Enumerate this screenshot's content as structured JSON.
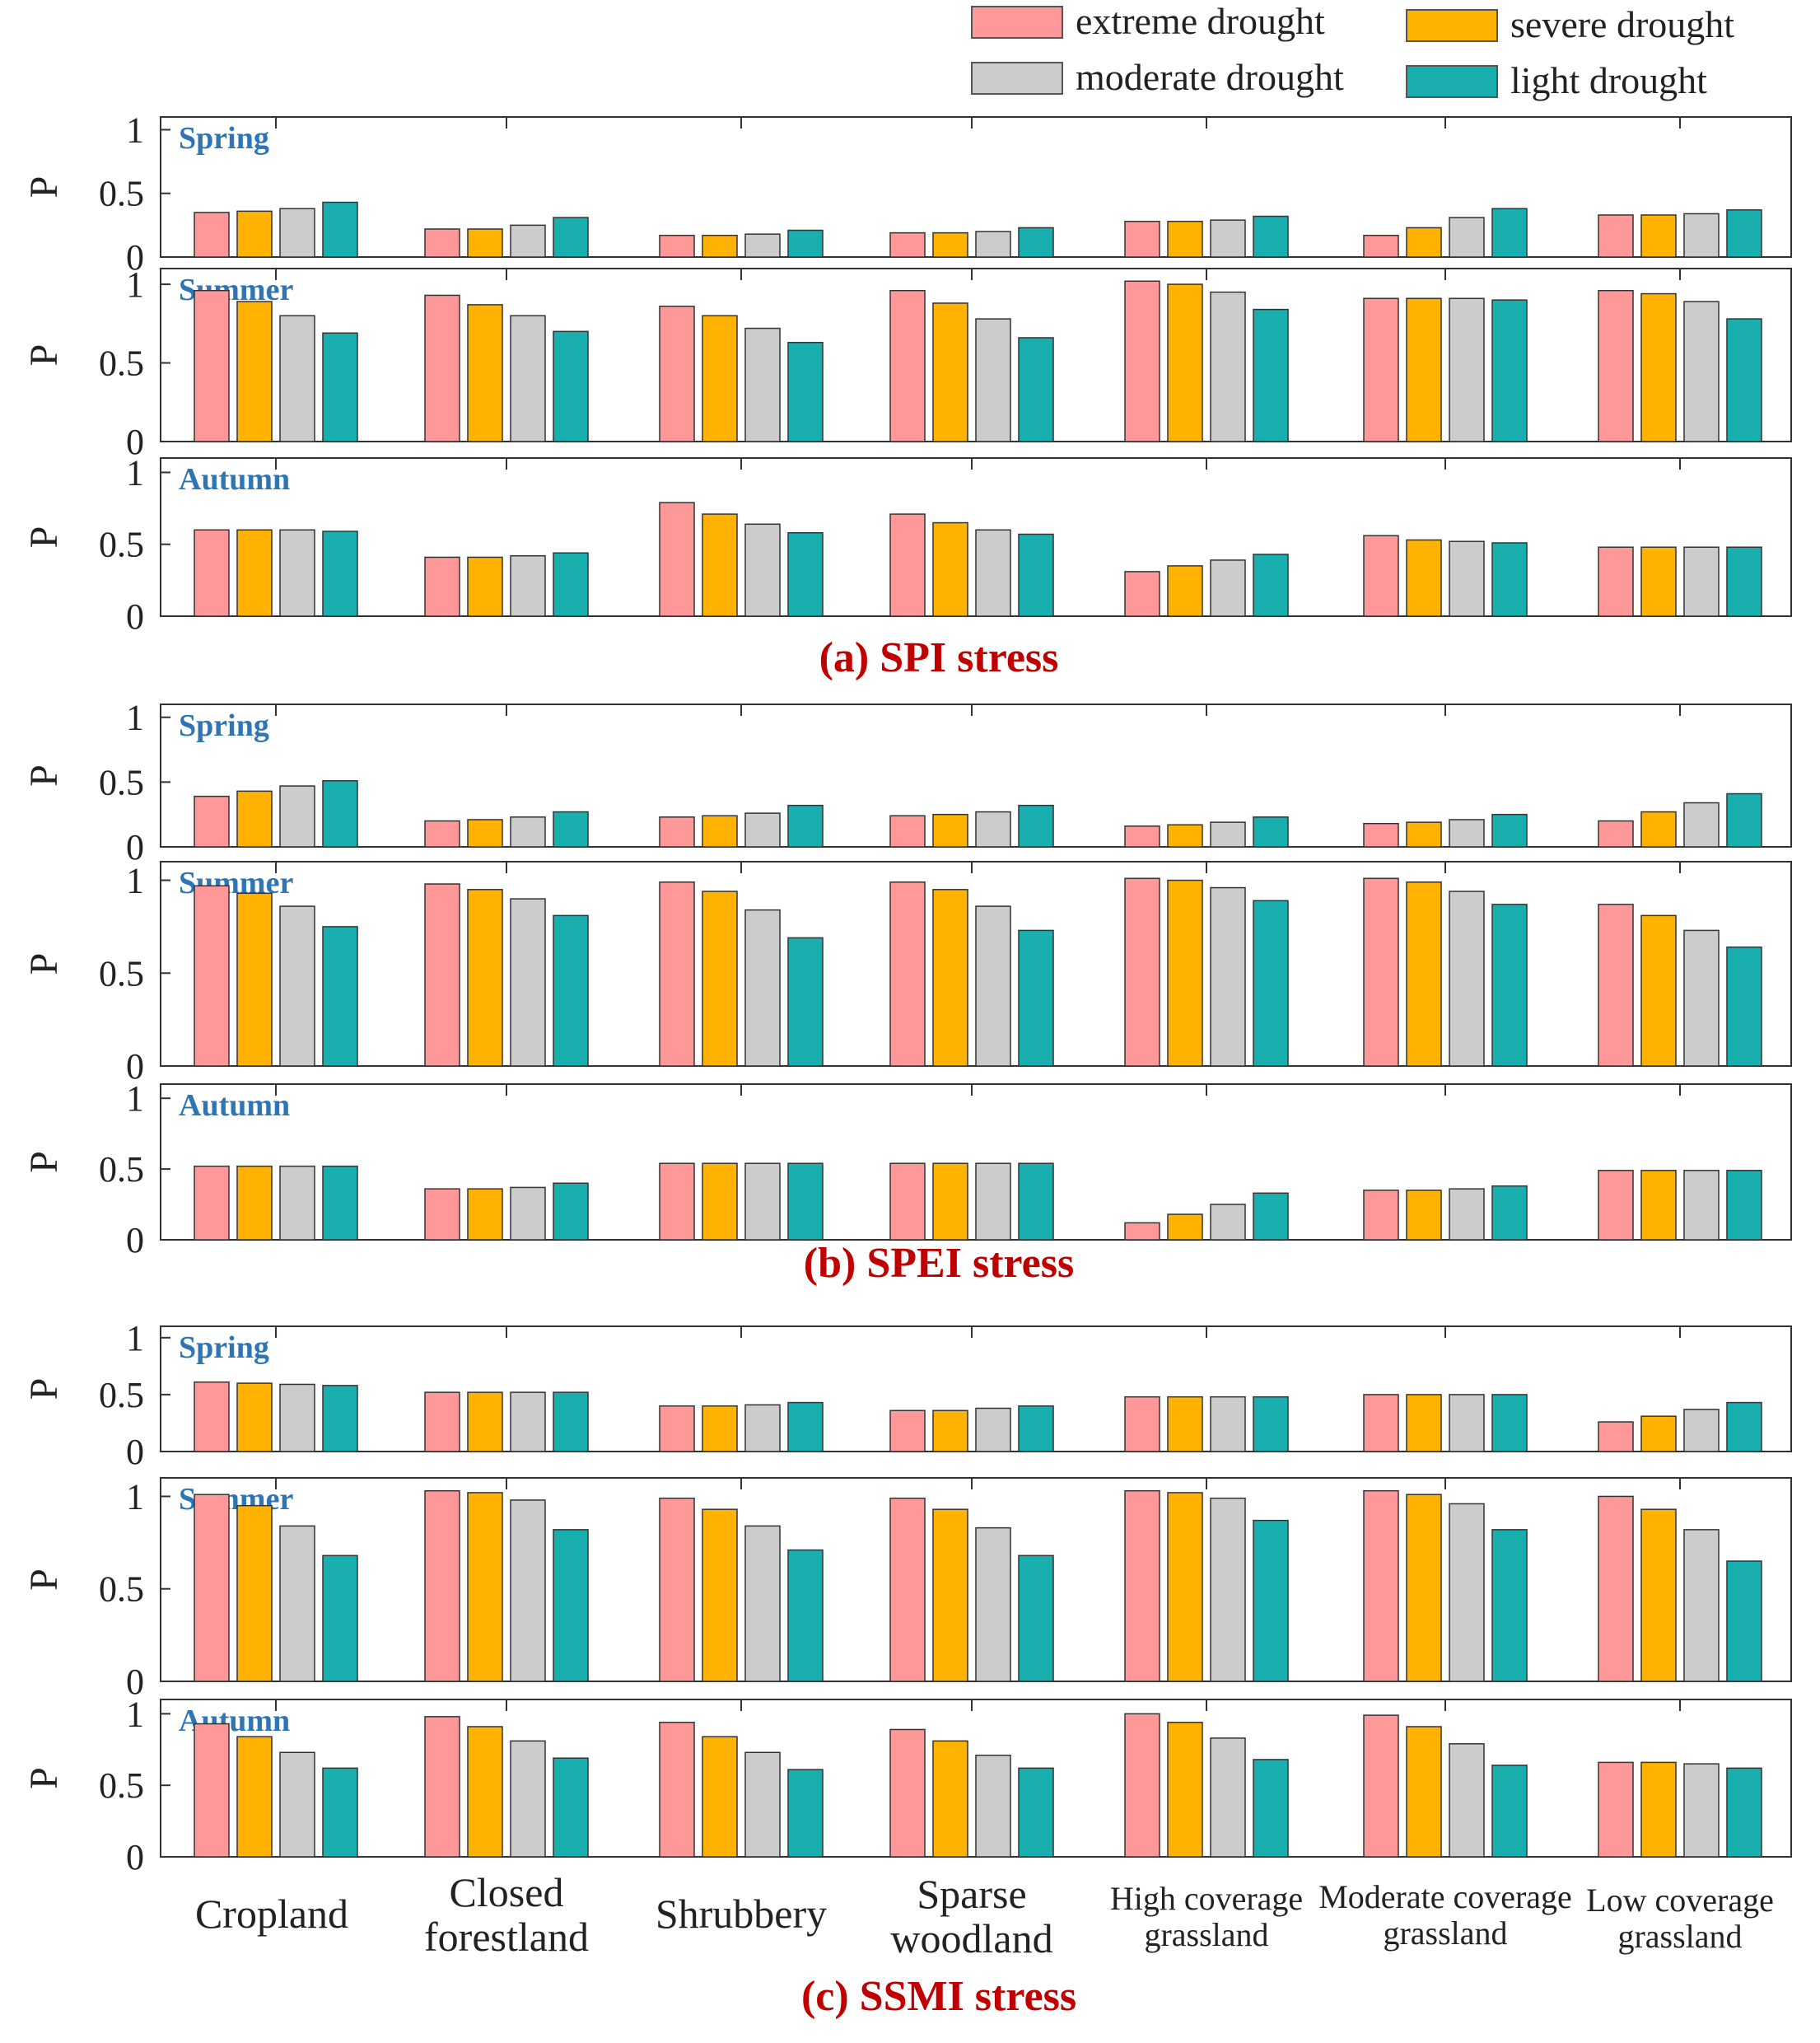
{
  "legend": {
    "items": [
      {
        "label": "extreme drought",
        "color": "#FF9999"
      },
      {
        "label": "severe drought",
        "color": "#FFB300"
      },
      {
        "label": "moderate drought",
        "color": "#CCCCCC"
      },
      {
        "label": "light drought",
        "color": "#1AAFAF"
      }
    ]
  },
  "colors": {
    "extreme": "#FF9999",
    "severe": "#FFB300",
    "moderate": "#CCCCCC",
    "light": "#1AAFAF",
    "caption": "#C00000",
    "season_label": "#2E75B6",
    "axis": "#333333"
  },
  "categories_display": [
    [
      "Cropland"
    ],
    [
      "Closed",
      "forestland"
    ],
    [
      "Shrubbery"
    ],
    [
      "Sparse",
      "woodland"
    ],
    [
      "High coverage",
      "grassland"
    ],
    [
      "Moderate coverage",
      "grassland"
    ],
    [
      "Low coverage",
      "grassland"
    ]
  ],
  "chart_data": [
    {
      "type": "bar",
      "caption": "(a) SPI stress",
      "ylabel": "P",
      "ylim": [
        0,
        1.1
      ],
      "yticks": [
        "0",
        "0.5",
        "1"
      ],
      "categories": [
        "Cropland",
        "Closed forestland",
        "Shrubbery",
        "Sparse woodland",
        "High coverage grassland",
        "Moderate coverage grassland",
        "Low coverage grassland"
      ],
      "panels": [
        {
          "season": "Spring",
          "series": [
            {
              "name": "extreme drought",
              "values": [
                0.35,
                0.22,
                0.17,
                0.19,
                0.28,
                0.17,
                0.33
              ]
            },
            {
              "name": "severe drought",
              "values": [
                0.36,
                0.22,
                0.17,
                0.19,
                0.28,
                0.23,
                0.33
              ]
            },
            {
              "name": "moderate drought",
              "values": [
                0.38,
                0.25,
                0.18,
                0.2,
                0.29,
                0.31,
                0.34
              ]
            },
            {
              "name": "light drought",
              "values": [
                0.43,
                0.31,
                0.21,
                0.23,
                0.32,
                0.38,
                0.37
              ]
            }
          ]
        },
        {
          "season": "Summer",
          "series": [
            {
              "name": "extreme drought",
              "values": [
                0.96,
                0.93,
                0.86,
                0.96,
                1.02,
                0.91,
                0.96
              ]
            },
            {
              "name": "severe drought",
              "values": [
                0.89,
                0.87,
                0.8,
                0.88,
                1.0,
                0.91,
                0.94
              ]
            },
            {
              "name": "moderate drought",
              "values": [
                0.8,
                0.8,
                0.72,
                0.78,
                0.95,
                0.91,
                0.89
              ]
            },
            {
              "name": "light drought",
              "values": [
                0.69,
                0.7,
                0.63,
                0.66,
                0.84,
                0.9,
                0.78
              ]
            }
          ]
        },
        {
          "season": "Autumn",
          "series": [
            {
              "name": "extreme drought",
              "values": [
                0.6,
                0.41,
                0.79,
                0.71,
                0.31,
                0.56,
                0.48
              ]
            },
            {
              "name": "severe drought",
              "values": [
                0.6,
                0.41,
                0.71,
                0.65,
                0.35,
                0.53,
                0.48
              ]
            },
            {
              "name": "moderate drought",
              "values": [
                0.6,
                0.42,
                0.64,
                0.6,
                0.39,
                0.52,
                0.48
              ]
            },
            {
              "name": "light drought",
              "values": [
                0.59,
                0.44,
                0.58,
                0.57,
                0.43,
                0.51,
                0.48
              ]
            }
          ]
        }
      ]
    },
    {
      "type": "bar",
      "caption": "(b) SPEI stress",
      "ylabel": "P",
      "ylim": [
        0,
        1.1
      ],
      "yticks": [
        "0",
        "0.5",
        "1"
      ],
      "categories": [
        "Cropland",
        "Closed forestland",
        "Shrubbery",
        "Sparse woodland",
        "High coverage grassland",
        "Moderate coverage grassland",
        "Low coverage grassland"
      ],
      "panels": [
        {
          "season": "Spring",
          "series": [
            {
              "name": "extreme drought",
              "values": [
                0.39,
                0.2,
                0.23,
                0.24,
                0.16,
                0.18,
                0.2
              ]
            },
            {
              "name": "severe drought",
              "values": [
                0.43,
                0.21,
                0.24,
                0.25,
                0.17,
                0.19,
                0.27
              ]
            },
            {
              "name": "moderate drought",
              "values": [
                0.47,
                0.23,
                0.26,
                0.27,
                0.19,
                0.21,
                0.34
              ]
            },
            {
              "name": "light drought",
              "values": [
                0.51,
                0.27,
                0.32,
                0.32,
                0.23,
                0.25,
                0.41
              ]
            }
          ]
        },
        {
          "season": "Summer",
          "series": [
            {
              "name": "extreme drought",
              "values": [
                0.97,
                0.98,
                0.99,
                0.99,
                1.01,
                1.01,
                0.87
              ]
            },
            {
              "name": "severe drought",
              "values": [
                0.93,
                0.95,
                0.94,
                0.95,
                1.0,
                0.99,
                0.81
              ]
            },
            {
              "name": "moderate drought",
              "values": [
                0.86,
                0.9,
                0.84,
                0.86,
                0.96,
                0.94,
                0.73
              ]
            },
            {
              "name": "light drought",
              "values": [
                0.75,
                0.81,
                0.69,
                0.73,
                0.89,
                0.87,
                0.64
              ]
            }
          ]
        },
        {
          "season": "Autumn",
          "series": [
            {
              "name": "extreme drought",
              "values": [
                0.52,
                0.36,
                0.54,
                0.54,
                0.12,
                0.35,
                0.49
              ]
            },
            {
              "name": "severe drought",
              "values": [
                0.52,
                0.36,
                0.54,
                0.54,
                0.18,
                0.35,
                0.49
              ]
            },
            {
              "name": "moderate drought",
              "values": [
                0.52,
                0.37,
                0.54,
                0.54,
                0.25,
                0.36,
                0.49
              ]
            },
            {
              "name": "light drought",
              "values": [
                0.52,
                0.4,
                0.54,
                0.54,
                0.33,
                0.38,
                0.49
              ]
            }
          ]
        }
      ]
    },
    {
      "type": "bar",
      "caption": "(c) SSMI stress",
      "ylabel": "P",
      "ylim": [
        0,
        1.1
      ],
      "yticks": [
        "0",
        "0.5",
        "1"
      ],
      "categories": [
        "Cropland",
        "Closed forestland",
        "Shrubbery",
        "Sparse woodland",
        "High coverage grassland",
        "Moderate coverage grassland",
        "Low coverage grassland"
      ],
      "panels": [
        {
          "season": "Spring",
          "series": [
            {
              "name": "extreme drought",
              "values": [
                0.61,
                0.52,
                0.4,
                0.36,
                0.48,
                0.5,
                0.26
              ]
            },
            {
              "name": "severe drought",
              "values": [
                0.6,
                0.52,
                0.4,
                0.36,
                0.48,
                0.5,
                0.31
              ]
            },
            {
              "name": "moderate drought",
              "values": [
                0.59,
                0.52,
                0.41,
                0.38,
                0.48,
                0.5,
                0.37
              ]
            },
            {
              "name": "light drought",
              "values": [
                0.58,
                0.52,
                0.43,
                0.4,
                0.48,
                0.5,
                0.43
              ]
            }
          ]
        },
        {
          "season": "Summer",
          "series": [
            {
              "name": "extreme drought",
              "values": [
                1.01,
                1.03,
                0.99,
                0.99,
                1.03,
                1.03,
                1.0
              ]
            },
            {
              "name": "severe drought",
              "values": [
                0.95,
                1.02,
                0.93,
                0.93,
                1.02,
                1.01,
                0.93
              ]
            },
            {
              "name": "moderate drought",
              "values": [
                0.84,
                0.98,
                0.84,
                0.83,
                0.99,
                0.96,
                0.82
              ]
            },
            {
              "name": "light drought",
              "values": [
                0.68,
                0.82,
                0.71,
                0.68,
                0.87,
                0.82,
                0.65
              ]
            }
          ]
        },
        {
          "season": "Autumn",
          "series": [
            {
              "name": "extreme drought",
              "values": [
                0.93,
                0.98,
                0.94,
                0.89,
                1.0,
                0.99,
                0.66
              ]
            },
            {
              "name": "severe drought",
              "values": [
                0.84,
                0.91,
                0.84,
                0.81,
                0.94,
                0.91,
                0.66
              ]
            },
            {
              "name": "moderate drought",
              "values": [
                0.73,
                0.81,
                0.73,
                0.71,
                0.83,
                0.79,
                0.65
              ]
            },
            {
              "name": "light drought",
              "values": [
                0.62,
                0.69,
                0.61,
                0.62,
                0.68,
                0.64,
                0.62
              ]
            }
          ]
        }
      ]
    }
  ]
}
